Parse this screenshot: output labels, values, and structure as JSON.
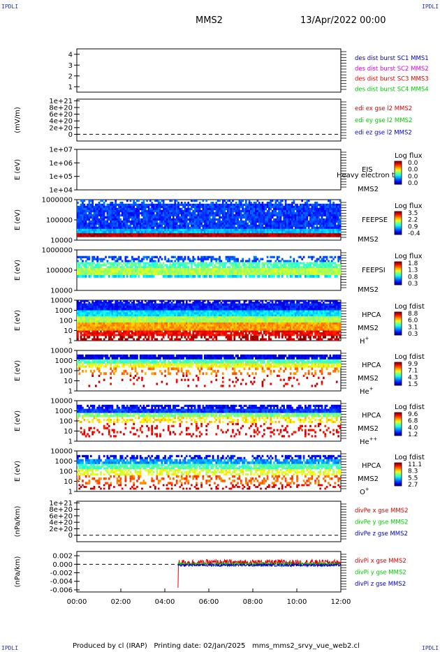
{
  "header": {
    "corner_label": "IPDLI",
    "spacecraft": "MMS2",
    "date_time": "13/Apr/2022 00:00"
  },
  "footer": {
    "produced_by": "Produced by cl (IRAP)",
    "printing_date": "Printing date: 02/Jan/2025",
    "script_name": "mms_mms2_srvy_vue_web2.cl"
  },
  "colors": {
    "blue": "#0000cc",
    "magenta": "#dd00dd",
    "red": "#dd0000",
    "green": "#00cc00",
    "dashed_line": "#000000"
  },
  "chart_data": [
    {
      "id": "dist-burst",
      "type": "line",
      "ylabel": "",
      "ylim": [
        0.5,
        4.5
      ],
      "yticks": [
        "4",
        "3",
        "2",
        "1"
      ],
      "ytick_values": [
        4,
        3,
        2,
        1
      ],
      "legend": [
        {
          "text": "des dist burst SC1 MMS1",
          "color": "#0000cc"
        },
        {
          "text": "des dist burst SC2 MMS2",
          "color": "#dd00dd"
        },
        {
          "text": "des dist burst SC3 MMS3",
          "color": "#dd0000"
        },
        {
          "text": "des dist burst SC4 MMS4",
          "color": "#00cc00"
        }
      ]
    },
    {
      "id": "edi-e",
      "type": "line",
      "ylabel": "(mV/m)",
      "ylim": [
        -2e+20,
        1.05e+21
      ],
      "yticks": [
        "1e+21",
        "8e+20",
        "6e+20",
        "4e+20",
        "2e+20",
        "0"
      ],
      "ytick_values": [
        1e+21,
        8e+20,
        6e+20,
        4e+20,
        2e+20,
        0
      ],
      "zero_line": true,
      "legend": [
        {
          "text": "edi ex gse l2 MMS2",
          "color": "#dd0000"
        },
        {
          "text": "edi ey gse l2 MMS2",
          "color": "#00cc00"
        },
        {
          "text": "edi ez gse l2 MMS2",
          "color": "#0000cc"
        }
      ]
    },
    {
      "id": "eis",
      "type": "heatmap",
      "ylabel": "E (eV)",
      "yticks": [
        "1e+07",
        "1e+06",
        "1e+05",
        "1e+04"
      ],
      "instrument": "EIS",
      "extra_text": "Heavy electron to",
      "spacecraft": "MMS2",
      "colorbar_title": "Log flux",
      "colorbar_ticks": [
        "0.0",
        "0.0",
        "0.0",
        "0.0"
      ]
    },
    {
      "id": "feepse",
      "type": "heatmap",
      "ylabel": "E (eV)",
      "yticks": [
        "1000000",
        "100000",
        "10000"
      ],
      "instrument": "FEEPSE",
      "spacecraft": "MMS2",
      "colorbar_title": "Log flux",
      "colorbar_ticks": [
        "3.5",
        "2.2",
        "0.9",
        "-0.4"
      ]
    },
    {
      "id": "feepsi",
      "type": "heatmap",
      "ylabel": "E (eV)",
      "yticks": [
        "1000000",
        "100000",
        "10000"
      ],
      "instrument": "FEEPSI",
      "spacecraft": "MMS2",
      "colorbar_title": "Log flux",
      "colorbar_ticks": [
        "1.8",
        "1.3",
        "0.8",
        "0.3"
      ]
    },
    {
      "id": "hpca-h",
      "type": "heatmap",
      "ylabel": "E (eV)",
      "yticks": [
        "10000",
        "1000",
        "100",
        "10",
        "1"
      ],
      "instrument": "HPCA",
      "spacecraft": "MMS2",
      "species": "H",
      "species_sup": "+",
      "colorbar_title": "Log fdist",
      "colorbar_ticks": [
        "8.8",
        "6.0",
        "3.1",
        "0.3"
      ]
    },
    {
      "id": "hpca-he",
      "type": "heatmap",
      "ylabel": "E (eV)",
      "yticks": [
        "10000",
        "1000",
        "100",
        "10",
        "1"
      ],
      "instrument": "HPCA",
      "spacecraft": "MMS2",
      "species": "He",
      "species_sup": "+",
      "colorbar_title": "Log fdist",
      "colorbar_ticks": [
        "9.9",
        "7.1",
        "4.3",
        "1.5"
      ]
    },
    {
      "id": "hpca-he2",
      "type": "heatmap",
      "ylabel": "E (eV)",
      "yticks": [
        "10000",
        "1000",
        "100",
        "10",
        "1"
      ],
      "instrument": "HPCA",
      "spacecraft": "MMS2",
      "species": "He",
      "species_sup": "++",
      "colorbar_title": "Log fdist",
      "colorbar_ticks": [
        "9.6",
        "6.8",
        "4.0",
        "1.2"
      ]
    },
    {
      "id": "hpca-o",
      "type": "heatmap",
      "ylabel": "E (eV)",
      "yticks": [
        "10000",
        "1000",
        "100",
        "10",
        "1"
      ],
      "instrument": "HPCA",
      "spacecraft": "MMS2",
      "species": "O",
      "species_sup": "+",
      "colorbar_title": "Log fdist",
      "colorbar_ticks": [
        "11.1",
        "8.3",
        "5.5",
        "2.7"
      ]
    },
    {
      "id": "divpe",
      "type": "line",
      "ylabel": "(nPa/km)",
      "ylim": [
        -2e+20,
        1.05e+21
      ],
      "yticks": [
        "1e+21",
        "8e+20",
        "6e+20",
        "4e+20",
        "2e+20",
        "0"
      ],
      "ytick_values": [
        1e+21,
        8e+20,
        6e+20,
        4e+20,
        2e+20,
        0
      ],
      "zero_line": true,
      "legend": [
        {
          "text": "divPe x gse MMS2",
          "color": "#dd0000"
        },
        {
          "text": "divPe y gse MMS2",
          "color": "#00cc00"
        },
        {
          "text": "divPe z gse MMS2",
          "color": "#0000cc"
        }
      ]
    },
    {
      "id": "divpi",
      "type": "line",
      "ylabel": "(nPa/km)",
      "ylim": [
        -0.0065,
        0.003
      ],
      "yticks": [
        "0.002",
        "0.000",
        "-0.002",
        "-0.004",
        "-0.006"
      ],
      "ytick_values": [
        0.002,
        0.0,
        -0.002,
        -0.004,
        -0.006
      ],
      "zero_line": true,
      "data_start_hour": 4.6,
      "series": [
        {
          "name": "divPi x gse MMS2",
          "color": "#dd0000",
          "mean": 0.0004,
          "noise": 0.0007,
          "spike_at": 4.6,
          "spike_value": -0.0055
        },
        {
          "name": "divPi y gse MMS2",
          "color": "#00cc00",
          "mean": 0.0001,
          "noise": 0.0002
        },
        {
          "name": "divPi z gse MMS2",
          "color": "#0000cc",
          "mean": -0.0002,
          "noise": 0.0003
        }
      ],
      "legend": [
        {
          "text": "divPi x gse MMS2",
          "color": "#dd0000"
        },
        {
          "text": "divPi y gse MMS2",
          "color": "#00cc00"
        },
        {
          "text": "divPi z gse MMS2",
          "color": "#0000cc"
        }
      ]
    }
  ],
  "x_axis": {
    "ticks": [
      "00:00",
      "02:00",
      "04:00",
      "06:00",
      "08:00",
      "10:00",
      "12:00"
    ],
    "tick_hours": [
      0,
      2,
      4,
      6,
      8,
      10,
      12
    ],
    "range_hours": [
      0,
      12
    ]
  }
}
